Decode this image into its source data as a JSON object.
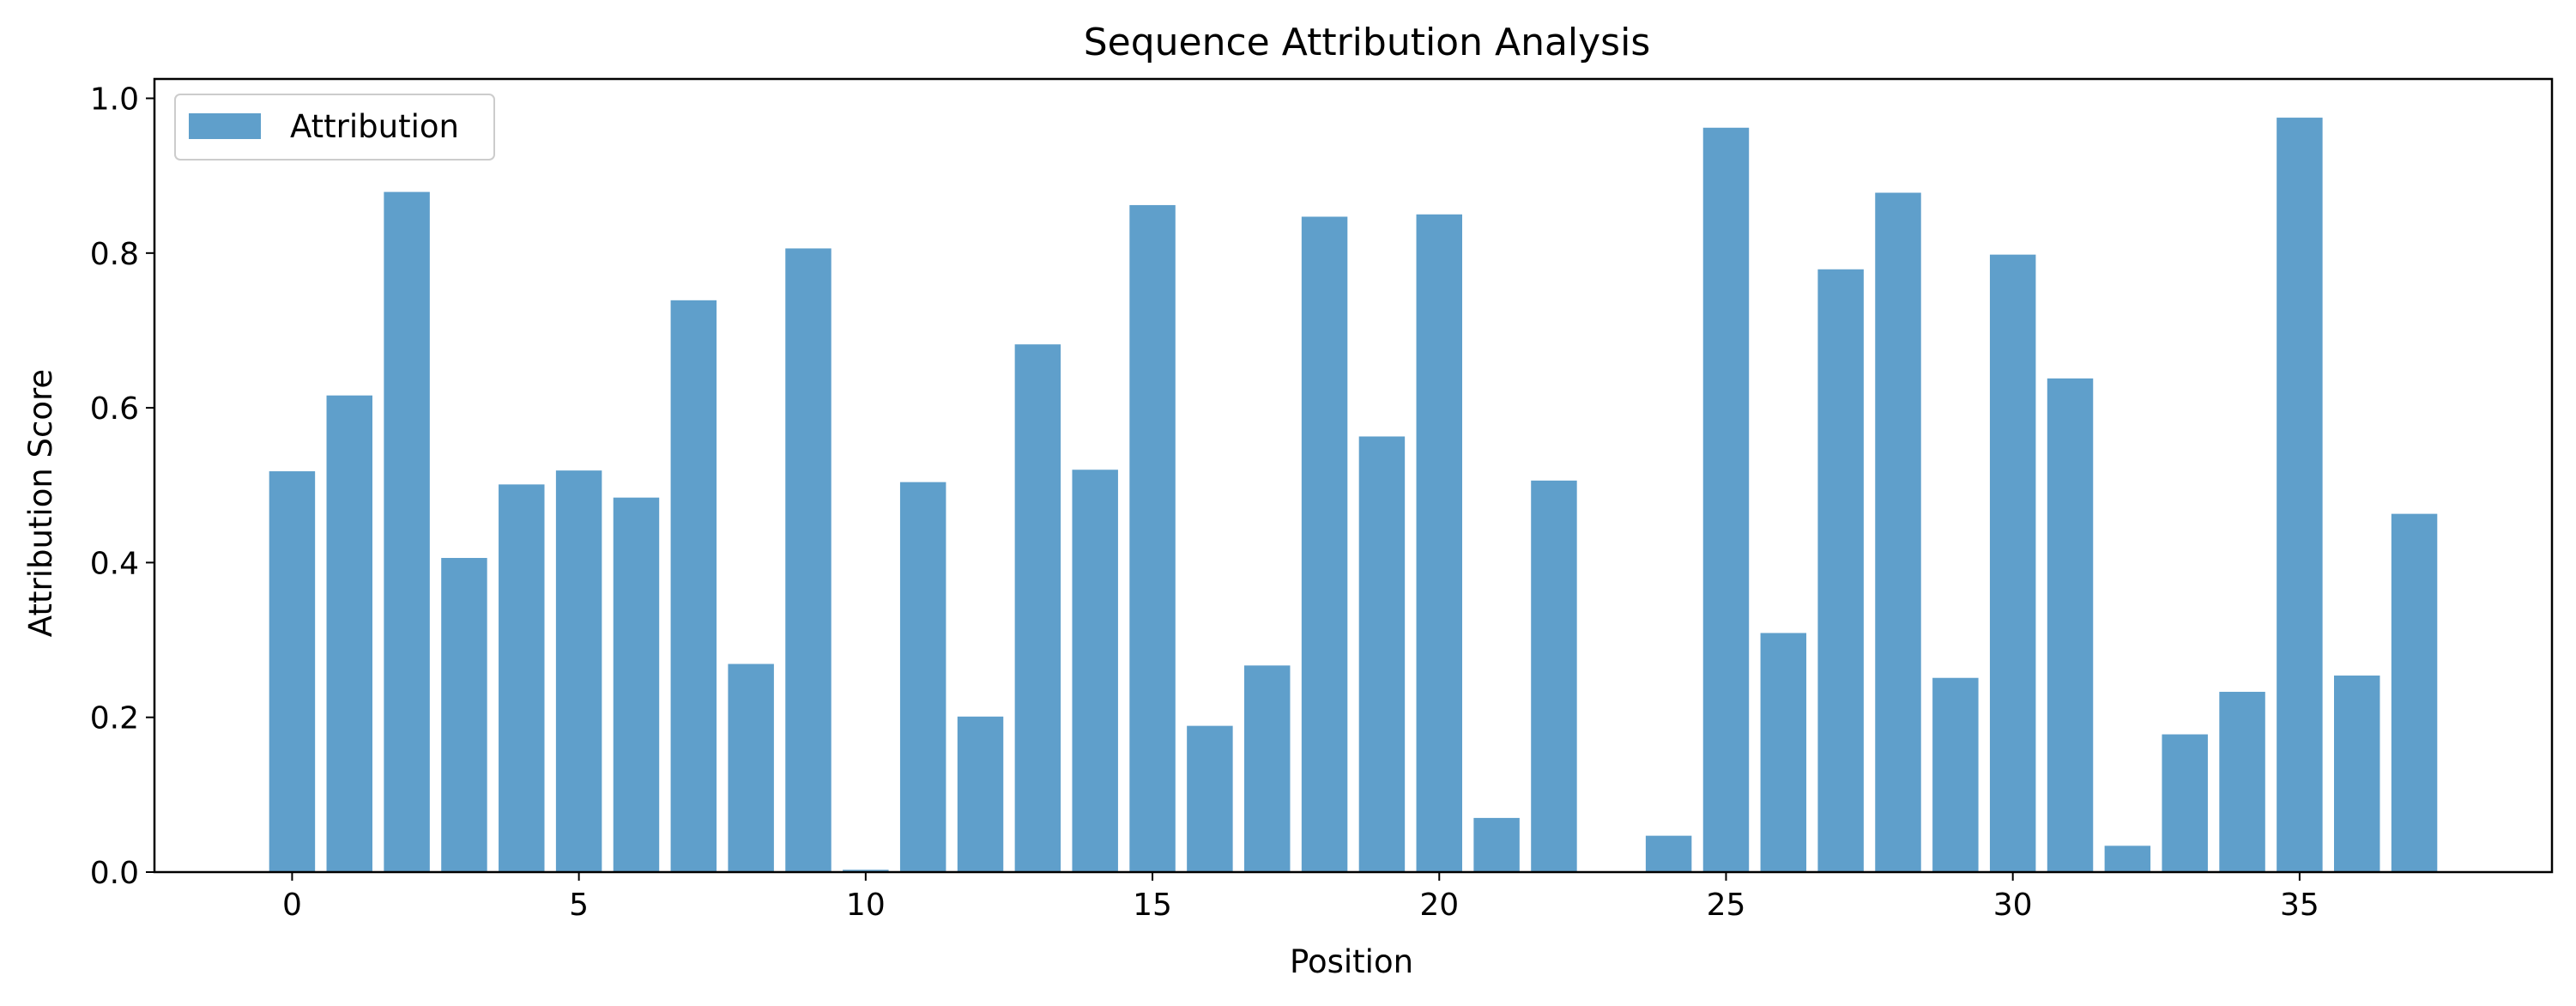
{
  "chart_data": {
    "type": "bar",
    "title": "Sequence Attribution Analysis",
    "xlabel": "Position",
    "ylabel": "Attribution Score",
    "xlim": [
      -2.4,
      39.4
    ],
    "ylim": [
      0,
      1.025
    ],
    "xticks": [
      0,
      5,
      10,
      15,
      20,
      25,
      30,
      35
    ],
    "yticks": [
      0.0,
      0.2,
      0.4,
      0.6,
      0.8,
      1.0
    ],
    "ytick_labels": [
      "0.0",
      "0.2",
      "0.4",
      "0.6",
      "0.8",
      "1.0"
    ],
    "bar_color": "#5f9fcb",
    "grid": false,
    "legend": {
      "position": "top-left",
      "entries": [
        "Attribution"
      ]
    },
    "series": [
      {
        "name": "Attribution",
        "x": [
          0,
          1,
          2,
          3,
          4,
          5,
          6,
          7,
          8,
          9,
          10,
          11,
          12,
          13,
          14,
          15,
          16,
          17,
          18,
          19,
          20,
          21,
          22,
          23,
          24,
          25,
          26,
          27,
          28,
          29,
          30,
          31,
          32,
          33,
          34,
          35,
          36,
          37
        ],
        "values": [
          0.518,
          0.616,
          0.879,
          0.406,
          0.501,
          0.519,
          0.484,
          0.739,
          0.269,
          0.806,
          0.003,
          0.504,
          0.201,
          0.682,
          0.52,
          0.862,
          0.189,
          0.267,
          0.847,
          0.563,
          0.85,
          0.07,
          0.506,
          0.0,
          0.047,
          0.962,
          0.309,
          0.779,
          0.878,
          0.251,
          0.798,
          0.638,
          0.034,
          0.178,
          0.233,
          0.975,
          0.254,
          0.463
        ]
      }
    ]
  }
}
